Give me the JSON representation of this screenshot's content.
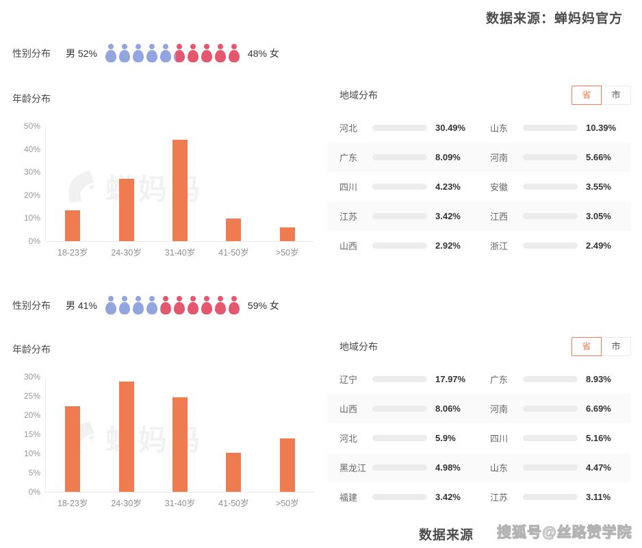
{
  "header": {
    "source": "数据来源：蝉妈妈官方"
  },
  "footer": {
    "source": "数据来源",
    "watermark": "搜狐号@丝路赞学院"
  },
  "brand_watermark": "蝉妈妈",
  "colors": {
    "accent": "#EE7C50",
    "region_fill": "#EE7F5C",
    "male": "#93A5DE",
    "female": "#E4586F",
    "track": "#ECECEC",
    "stripe": "#FAFAFA",
    "tab_active": "#F07C54"
  },
  "sections": [
    {
      "gender": {
        "title": "性别分布",
        "male_label": "男 52%",
        "female_label": "48% 女",
        "male_pct": 52,
        "female_pct": 48,
        "icon_count": 10
      },
      "age_title": "年龄分布",
      "region": {
        "title": "地域分布",
        "tabs": [
          {
            "label": "省",
            "selected": true
          },
          {
            "label": "市",
            "selected": false
          }
        ]
      }
    },
    {
      "gender": {
        "title": "性别分布",
        "male_label": "男 41%",
        "female_label": "59% 女",
        "male_pct": 41,
        "female_pct": 59,
        "icon_count": 10
      },
      "age_title": "年龄分布",
      "region": {
        "title": "地域分布",
        "tabs": [
          {
            "label": "省",
            "selected": true
          },
          {
            "label": "市",
            "selected": false
          }
        ]
      }
    }
  ],
  "chart_data": [
    {
      "type": "bar",
      "title": "年龄分布",
      "categories": [
        "18-23岁",
        "24-30岁",
        "31-40岁",
        "41-50岁",
        ">50岁"
      ],
      "values": [
        13.5,
        27,
        44,
        9.7,
        6
      ],
      "unit": "%",
      "xlabel": "",
      "ylabel": "",
      "ylim": [
        0,
        50
      ],
      "yticks": [
        0,
        10,
        20,
        30,
        40,
        50
      ],
      "grid": false
    },
    {
      "type": "bar",
      "title": "年龄分布",
      "categories": [
        "18-23岁",
        "24-30岁",
        "31-40岁",
        "41-50岁",
        ">50岁"
      ],
      "values": [
        22.4,
        28.8,
        24.6,
        10.2,
        13.9
      ],
      "unit": "%",
      "xlabel": "",
      "ylabel": "",
      "ylim": [
        0,
        30
      ],
      "yticks": [
        0,
        5,
        10,
        15,
        20,
        25,
        30
      ],
      "grid": false
    },
    {
      "type": "bar",
      "orientation": "horizontal",
      "title": "地域分布",
      "categories": [
        "河北",
        "山东",
        "广东",
        "河南",
        "四川",
        "安徽",
        "江苏",
        "江西",
        "山西",
        "浙江"
      ],
      "values": [
        30.49,
        10.39,
        8.09,
        5.66,
        4.23,
        3.55,
        3.42,
        3.05,
        2.92,
        2.49
      ],
      "unit": "%",
      "value_labels": [
        "30.49%",
        "10.39%",
        "8.09%",
        "5.66%",
        "4.23%",
        "3.55%",
        "3.42%",
        "3.05%",
        "2.92%",
        "2.49%"
      ]
    },
    {
      "type": "bar",
      "orientation": "horizontal",
      "title": "地域分布",
      "categories": [
        "辽宁",
        "广东",
        "山西",
        "河南",
        "河北",
        "四川",
        "黑龙江",
        "山东",
        "福建",
        "江苏"
      ],
      "values": [
        17.97,
        8.93,
        8.06,
        6.69,
        5.9,
        5.16,
        4.98,
        4.47,
        3.42,
        3.11
      ],
      "unit": "%",
      "value_labels": [
        "17.97%",
        "8.93%",
        "8.06%",
        "6.69%",
        "5.9%",
        "5.16%",
        "4.98%",
        "4.47%",
        "3.42%",
        "3.11%"
      ]
    }
  ]
}
